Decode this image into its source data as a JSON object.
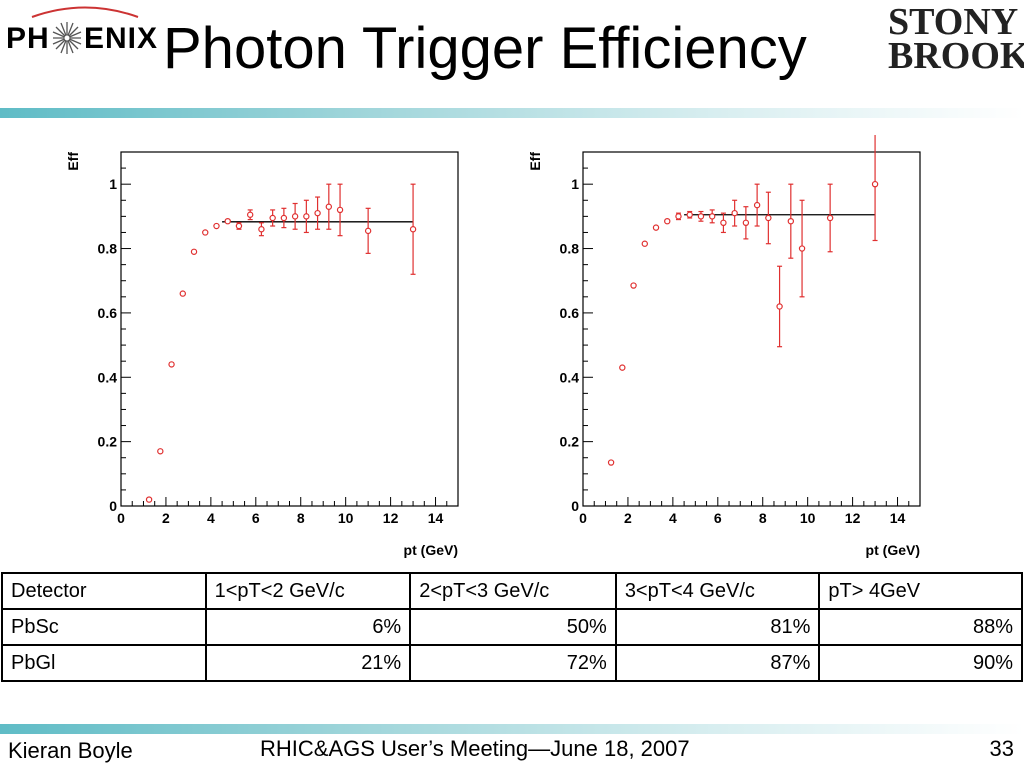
{
  "header": {
    "title": "Photon Trigger Efficiency",
    "logo_left": {
      "part1": "PH",
      "part2": "ENIX"
    },
    "logo_right": {
      "line1": "STONY",
      "line2": "BROOK"
    }
  },
  "colors": {
    "marker": "#e03030",
    "fit": "#000000",
    "accent": "#5fbcc6"
  },
  "chart_data": [
    {
      "type": "scatter",
      "xlabel": "pt (GeV)",
      "ylabel": "Eff",
      "xlim": [
        0,
        15
      ],
      "ylim": [
        0,
        1.1
      ],
      "xticks": [
        0,
        2,
        4,
        6,
        8,
        10,
        12,
        14
      ],
      "yticks": [
        0,
        0.2,
        0.4,
        0.6,
        0.8,
        1
      ],
      "xtick_labels": [
        "0",
        "2",
        "4",
        "6",
        "8",
        "10",
        "12",
        "14"
      ],
      "ytick_labels": [
        "0",
        "0.2",
        "0.4",
        "0.6",
        "0.8",
        "1"
      ],
      "fit": {
        "value": 0.883,
        "x_range": [
          4.5,
          13
        ]
      },
      "points": [
        {
          "x": 1.25,
          "y": 0.02,
          "err": 0
        },
        {
          "x": 1.75,
          "y": 0.17,
          "err": 0
        },
        {
          "x": 2.25,
          "y": 0.44,
          "err": 0
        },
        {
          "x": 2.75,
          "y": 0.66,
          "err": 0
        },
        {
          "x": 3.25,
          "y": 0.79,
          "err": 0
        },
        {
          "x": 3.75,
          "y": 0.85,
          "err": 0
        },
        {
          "x": 4.25,
          "y": 0.87,
          "err": 0
        },
        {
          "x": 4.75,
          "y": 0.885,
          "err": 0
        },
        {
          "x": 5.25,
          "y": 0.87,
          "err": 0.01
        },
        {
          "x": 5.75,
          "y": 0.905,
          "err": 0.015
        },
        {
          "x": 6.25,
          "y": 0.86,
          "err": 0.02
        },
        {
          "x": 6.75,
          "y": 0.895,
          "err": 0.025
        },
        {
          "x": 7.25,
          "y": 0.895,
          "err": 0.03
        },
        {
          "x": 7.75,
          "y": 0.9,
          "err": 0.04
        },
        {
          "x": 8.25,
          "y": 0.9,
          "err": 0.05
        },
        {
          "x": 8.75,
          "y": 0.91,
          "err": 0.05
        },
        {
          "x": 9.25,
          "y": 0.93,
          "err": 0.07
        },
        {
          "x": 9.75,
          "y": 0.92,
          "err": 0.08
        },
        {
          "x": 11,
          "y": 0.855,
          "err": 0.07
        },
        {
          "x": 13,
          "y": 0.86,
          "err": 0.14
        }
      ]
    },
    {
      "type": "scatter",
      "xlabel": "pt (GeV)",
      "ylabel": "Eff",
      "xlim": [
        0,
        15
      ],
      "ylim": [
        0,
        1.1
      ],
      "xticks": [
        0,
        2,
        4,
        6,
        8,
        10,
        12,
        14
      ],
      "yticks": [
        0,
        0.2,
        0.4,
        0.6,
        0.8,
        1
      ],
      "xtick_labels": [
        "0",
        "2",
        "4",
        "6",
        "8",
        "10",
        "12",
        "14"
      ],
      "ytick_labels": [
        "0",
        "0.2",
        "0.4",
        "0.6",
        "0.8",
        "1"
      ],
      "fit": {
        "value": 0.905,
        "x_range": [
          4.5,
          13
        ]
      },
      "points": [
        {
          "x": 1.25,
          "y": 0.135,
          "err": 0
        },
        {
          "x": 1.75,
          "y": 0.43,
          "err": 0
        },
        {
          "x": 2.25,
          "y": 0.685,
          "err": 0
        },
        {
          "x": 2.75,
          "y": 0.815,
          "err": 0
        },
        {
          "x": 3.25,
          "y": 0.865,
          "err": 0
        },
        {
          "x": 3.75,
          "y": 0.885,
          "err": 0
        },
        {
          "x": 4.25,
          "y": 0.9,
          "err": 0.01
        },
        {
          "x": 4.75,
          "y": 0.905,
          "err": 0.01
        },
        {
          "x": 5.25,
          "y": 0.9,
          "err": 0.015
        },
        {
          "x": 5.75,
          "y": 0.9,
          "err": 0.02
        },
        {
          "x": 6.25,
          "y": 0.88,
          "err": 0.03
        },
        {
          "x": 6.75,
          "y": 0.91,
          "err": 0.04
        },
        {
          "x": 7.25,
          "y": 0.88,
          "err": 0.05
        },
        {
          "x": 7.75,
          "y": 0.935,
          "err": 0.065
        },
        {
          "x": 8.25,
          "y": 0.895,
          "err": 0.08
        },
        {
          "x": 8.75,
          "y": 0.62,
          "err": 0.125
        },
        {
          "x": 9.25,
          "y": 0.885,
          "err": 0.115
        },
        {
          "x": 9.75,
          "y": 0.8,
          "err": 0.15
        },
        {
          "x": 11,
          "y": 0.895,
          "err": 0.105
        },
        {
          "x": 13,
          "y": 1.0,
          "err": 0.175
        }
      ]
    }
  ],
  "table": {
    "headers": [
      "Detector",
      "1<pT<2 GeV/c",
      "2<pT<3 GeV/c",
      "3<pT<4 GeV/c",
      "pT> 4GeV"
    ],
    "rows": [
      [
        "PbSc",
        "6%",
        "50%",
        "81%",
        "88%"
      ],
      [
        "PbGl",
        "21%",
        "72%",
        "87%",
        "90%"
      ]
    ]
  },
  "footer": {
    "author": "Kieran Boyle",
    "meeting": "RHIC&AGS User’s Meeting—June 18, 2007",
    "page": "33"
  }
}
